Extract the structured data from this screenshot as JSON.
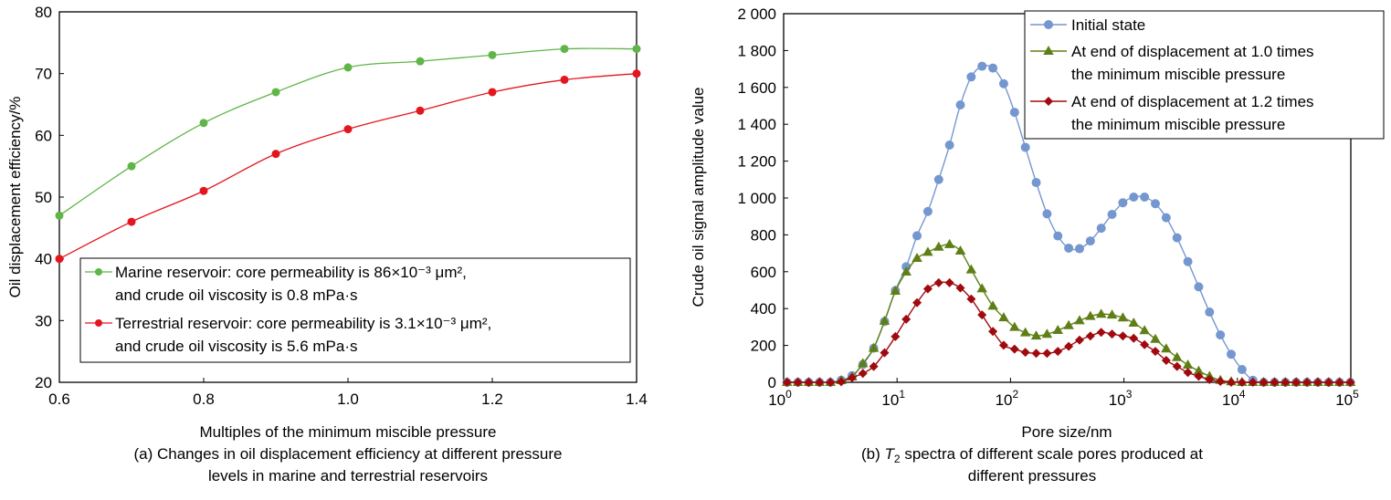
{
  "chart_data": [
    {
      "type": "line",
      "id": "a",
      "xlabel": "Multiples of the minimum miscible pressure",
      "ylabel": "Oil displacement efficiency/%",
      "caption": [
        "(a) Changes in oil displacement efficiency at different pressure",
        "levels in marine and terrestrial reservoirs"
      ],
      "xlim": [
        0.6,
        1.4
      ],
      "ylim": [
        20,
        80
      ],
      "xticks": [
        0.6,
        0.8,
        1.0,
        1.2,
        1.4
      ],
      "xtick_labels": [
        "0.6",
        "0.8",
        "1.0",
        "1.2",
        "1.4"
      ],
      "yticks": [
        20,
        30,
        40,
        50,
        60,
        70,
        80
      ],
      "grid": false,
      "legend_position": "bottom-right",
      "x": [
        0.6,
        0.7,
        0.8,
        0.9,
        1.0,
        1.1,
        1.2,
        1.3,
        1.4
      ],
      "series": [
        {
          "name": "Marine reservoir",
          "legend": [
            "Marine reservoir: core permeability is 86×10⁻³ μm²,",
            "and crude oil viscosity is 0.8 mPa·s"
          ],
          "color": "#5fb548",
          "marker": "circle",
          "values": [
            47,
            55,
            62,
            67,
            71,
            72,
            73,
            74,
            74
          ]
        },
        {
          "name": "Terrestrial reservoir",
          "legend": [
            "Terrestrial reservoir: core permeability is 3.1×10⁻³ μm²,",
            "and crude oil viscosity is 5.6 mPa·s"
          ],
          "color": "#e3161e",
          "marker": "circle",
          "values": [
            40,
            46,
            51,
            57,
            61,
            64,
            67,
            69,
            70
          ]
        }
      ]
    },
    {
      "type": "line",
      "id": "b",
      "xlabel": "Pore size/nm",
      "ylabel": "Crude oil signal amplitude value",
      "caption_prefix": "(b) ",
      "caption_symbol": "T",
      "caption_sub": "2",
      "caption": [
        " spectra of different scale pores produced at",
        "different pressures"
      ],
      "xscale": "log",
      "xlim_log10": [
        0,
        5
      ],
      "xtick_base": "10",
      "xtick_exponents": [
        "0",
        "1",
        "2",
        "3",
        "4",
        "5"
      ],
      "ylim": [
        0,
        2000
      ],
      "yticks": [
        0,
        200,
        400,
        600,
        800,
        1000,
        1200,
        1400,
        1600,
        1800,
        2000
      ],
      "ytick_labels": [
        "0",
        "200",
        "400",
        "600",
        "800",
        "1 000",
        "1 200",
        "1 400",
        "1 600",
        "1 800",
        "2 000"
      ],
      "grid": false,
      "legend_position": "top-right",
      "x_log10_start": 0.03,
      "x_log10_step": 0.0955,
      "series": [
        {
          "name": "Initial state",
          "legend": [
            "Initial state"
          ],
          "color": "#7597d0",
          "marker": "circle",
          "values": [
            0,
            0,
            0,
            0,
            0,
            11,
            36,
            97,
            185,
            330,
            498,
            627,
            795,
            927,
            1100,
            1287,
            1505,
            1657,
            1715,
            1705,
            1620,
            1465,
            1275,
            1084,
            914,
            794,
            728,
            725,
            767,
            836,
            911,
            974,
            1005,
            1005,
            969,
            893,
            784,
            655,
            518,
            381,
            257,
            152,
            69,
            11,
            0,
            0,
            0,
            0,
            0,
            0,
            0,
            0,
            0
          ]
        },
        {
          "name": "At end of displacement at 1.0 times the minimum miscible pressure",
          "legend": [
            "At end of displacement at 1.0 times",
            "the minimum miscible pressure"
          ],
          "color": "#5f7f16",
          "marker": "triangle",
          "values": [
            0,
            0,
            0,
            0,
            0,
            10,
            30,
            102,
            185,
            332,
            495,
            599,
            673,
            706,
            734,
            748,
            713,
            611,
            508,
            414,
            351,
            299,
            269,
            252,
            261,
            282,
            308,
            335,
            358,
            370,
            366,
            350,
            322,
            281,
            234,
            182,
            135,
            94,
            61,
            33,
            11,
            4,
            0,
            0,
            0,
            0,
            0,
            0,
            0,
            0,
            0,
            0,
            0
          ]
        },
        {
          "name": "At end of displacement at 1.2 times the minimum miscible pressure",
          "legend": [
            "At end of displacement at 1.2 times",
            "the minimum miscible pressure"
          ],
          "color": "#a00a0e",
          "marker": "diamond",
          "values": [
            0,
            0,
            0,
            0,
            0,
            3,
            25,
            48,
            86,
            160,
            248,
            342,
            432,
            507,
            540,
            540,
            512,
            452,
            366,
            276,
            201,
            180,
            163,
            157,
            157,
            168,
            195,
            229,
            251,
            271,
            262,
            251,
            239,
            204,
            168,
            119,
            86,
            53,
            33,
            15,
            5,
            0,
            0,
            0,
            0,
            0,
            0,
            0,
            0,
            0,
            0,
            0,
            0
          ]
        }
      ]
    }
  ]
}
